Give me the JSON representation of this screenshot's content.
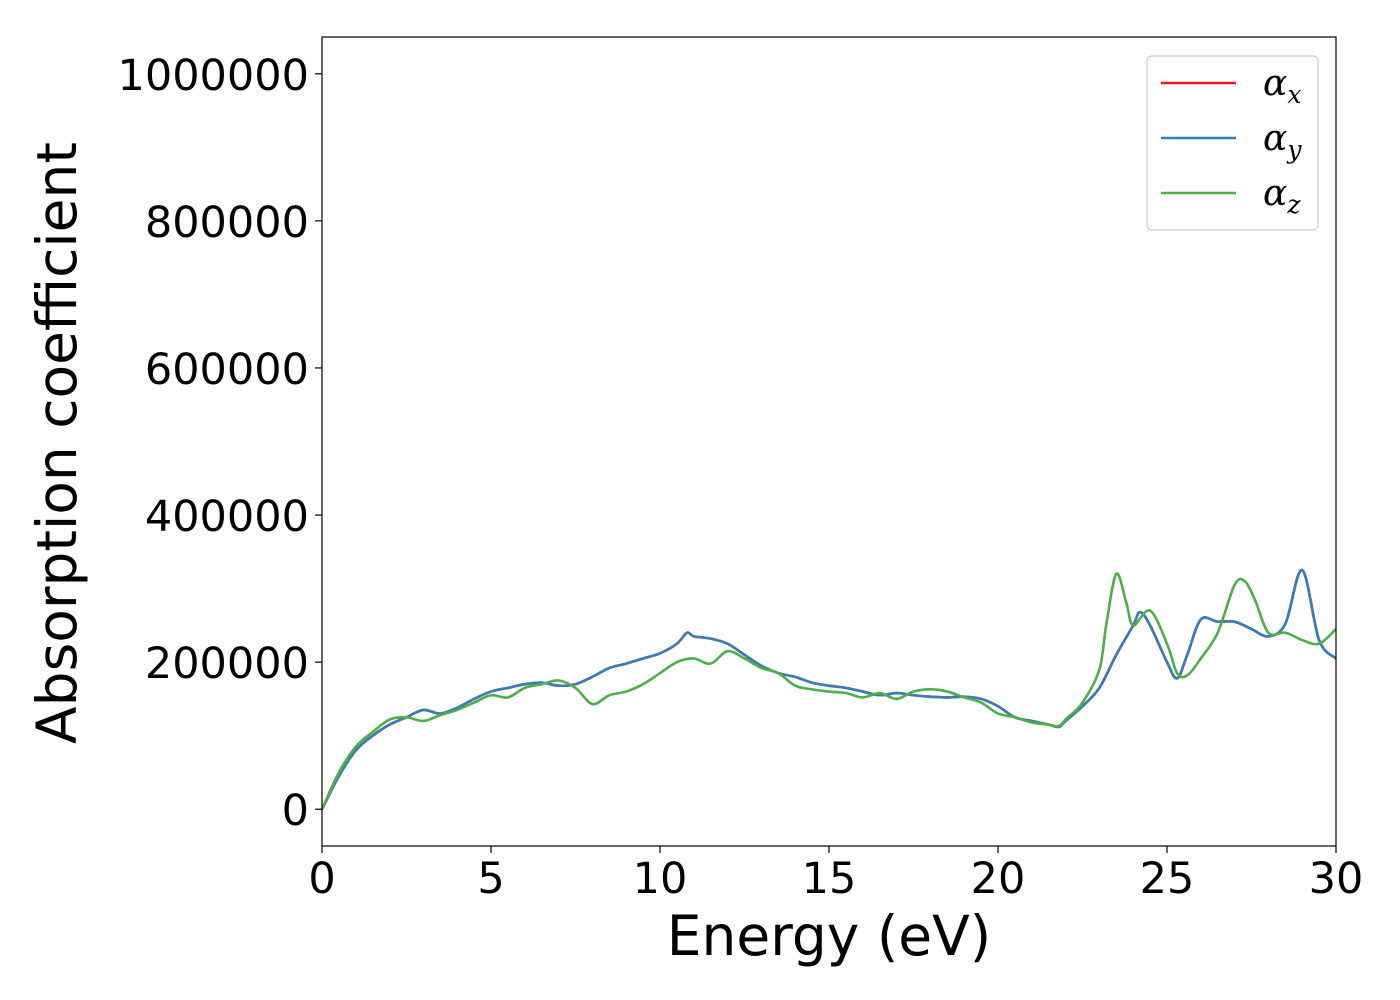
{
  "chart_data": {
    "type": "line",
    "xlabel": "Energy (eV)",
    "ylabel": "Absorption coefficient",
    "xlim": [
      0,
      30
    ],
    "ylim": [
      -50000,
      1050000
    ],
    "xticks": [
      0,
      5,
      10,
      15,
      20,
      25,
      30
    ],
    "xtick_labels": [
      "0",
      "5",
      "10",
      "15",
      "20",
      "25",
      "30"
    ],
    "yticks": [
      0,
      200000,
      400000,
      600000,
      800000,
      1000000
    ],
    "ytick_labels": [
      "0",
      "200000",
      "400000",
      "600000",
      "800000",
      "1000000"
    ],
    "grid": false,
    "legend_position": "top-right",
    "series": [
      {
        "name": "α",
        "subscript": "x",
        "color": "#e41a1c",
        "x": [
          0,
          0.5,
          1,
          1.5,
          2,
          2.5,
          3,
          3.5,
          4,
          4.5,
          5,
          5.5,
          6,
          6.5,
          7,
          7.5,
          8,
          8.5,
          9,
          9.5,
          10,
          10.5,
          10.8,
          11,
          11.5,
          12,
          12.5,
          13,
          13.5,
          14,
          14.5,
          15,
          15.5,
          16,
          16.5,
          17,
          17.5,
          18,
          18.5,
          19,
          19.5,
          20,
          20.5,
          21,
          21.5,
          21.8,
          22,
          22.5,
          23,
          23.5,
          24,
          24.2,
          24.5,
          25,
          25.3,
          25.6,
          26,
          26.5,
          27,
          27.5,
          28,
          28.5,
          29,
          29.5,
          30
        ],
        "y": [
          0,
          45000,
          80000,
          100000,
          115000,
          125000,
          135000,
          130000,
          138000,
          150000,
          160000,
          165000,
          170000,
          172000,
          168000,
          170000,
          180000,
          192000,
          198000,
          205000,
          212000,
          225000,
          240000,
          235000,
          232000,
          225000,
          210000,
          195000,
          185000,
          180000,
          172000,
          168000,
          165000,
          160000,
          155000,
          158000,
          155000,
          153000,
          152000,
          153000,
          150000,
          140000,
          125000,
          120000,
          115000,
          112000,
          120000,
          140000,
          165000,
          210000,
          250000,
          268000,
          250000,
          200000,
          178000,
          210000,
          258000,
          255000,
          255000,
          245000,
          235000,
          252000,
          325000,
          230000,
          205000
        ]
      },
      {
        "name": "α",
        "subscript": "y",
        "color": "#377eb8",
        "x": [
          0,
          0.5,
          1,
          1.5,
          2,
          2.5,
          3,
          3.5,
          4,
          4.5,
          5,
          5.5,
          6,
          6.5,
          7,
          7.5,
          8,
          8.5,
          9,
          9.5,
          10,
          10.5,
          10.8,
          11,
          11.5,
          12,
          12.5,
          13,
          13.5,
          14,
          14.5,
          15,
          15.5,
          16,
          16.5,
          17,
          17.5,
          18,
          18.5,
          19,
          19.5,
          20,
          20.5,
          21,
          21.5,
          21.8,
          22,
          22.5,
          23,
          23.5,
          24,
          24.2,
          24.5,
          25,
          25.3,
          25.6,
          26,
          26.5,
          27,
          27.5,
          28,
          28.5,
          29,
          29.5,
          30
        ],
        "y": [
          0,
          45000,
          80000,
          100000,
          115000,
          125000,
          135000,
          130000,
          138000,
          150000,
          160000,
          165000,
          170000,
          172000,
          168000,
          170000,
          180000,
          192000,
          198000,
          205000,
          212000,
          225000,
          240000,
          235000,
          232000,
          225000,
          210000,
          195000,
          185000,
          180000,
          172000,
          168000,
          165000,
          160000,
          155000,
          158000,
          155000,
          153000,
          152000,
          153000,
          150000,
          140000,
          125000,
          120000,
          115000,
          112000,
          120000,
          140000,
          165000,
          210000,
          250000,
          268000,
          250000,
          200000,
          178000,
          210000,
          258000,
          255000,
          255000,
          245000,
          235000,
          252000,
          325000,
          230000,
          205000
        ]
      },
      {
        "name": "α",
        "subscript": "z",
        "color": "#4daf4a",
        "x": [
          0,
          0.5,
          1,
          1.5,
          2,
          2.5,
          3,
          3.5,
          4,
          4.5,
          5,
          5.5,
          6,
          6.5,
          7,
          7.5,
          8,
          8.5,
          9,
          9.5,
          10,
          10.5,
          11,
          11.5,
          12,
          12.5,
          13,
          13.5,
          14,
          14.5,
          15,
          15.5,
          16,
          16.5,
          17,
          17.5,
          18,
          18.5,
          19,
          19.5,
          20,
          20.5,
          21,
          21.5,
          21.8,
          22,
          22.5,
          23,
          23.2,
          23.5,
          23.8,
          24,
          24.5,
          25,
          25.3,
          25.6,
          26,
          26.5,
          27,
          27.3,
          27.6,
          28,
          28.5,
          29,
          29.5,
          30
        ],
        "y": [
          0,
          50000,
          85000,
          105000,
          122000,
          125000,
          120000,
          128000,
          135000,
          145000,
          155000,
          152000,
          165000,
          170000,
          175000,
          165000,
          143000,
          155000,
          160000,
          170000,
          185000,
          200000,
          205000,
          198000,
          215000,
          205000,
          192000,
          185000,
          168000,
          163000,
          160000,
          158000,
          152000,
          158000,
          150000,
          160000,
          163000,
          160000,
          152000,
          145000,
          130000,
          125000,
          118000,
          115000,
          113000,
          122000,
          145000,
          190000,
          250000,
          320000,
          280000,
          250000,
          270000,
          225000,
          185000,
          182000,
          205000,
          240000,
          305000,
          310000,
          285000,
          240000,
          240000,
          230000,
          225000,
          245000
        ]
      }
    ]
  }
}
